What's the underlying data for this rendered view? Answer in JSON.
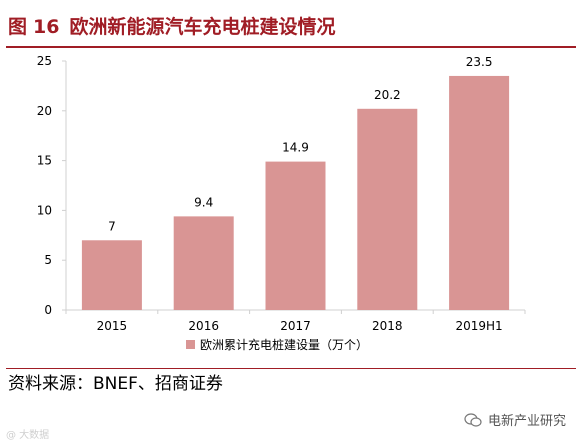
{
  "figure": {
    "label": "图",
    "number": "16",
    "title": "欧洲新能源汽车充电桩建设情况"
  },
  "source": "资料来源：BNEF、招商证券",
  "watermark": {
    "text": "电新产业研究",
    "icon": "wechat-icon"
  },
  "faint_watermark": "@ 大数据",
  "colors": {
    "accent": "#a01d25",
    "bar": "#d99594",
    "axis": "#d0d0d0",
    "text": "#000000"
  },
  "chart_data": {
    "type": "bar",
    "title": "图 16 欧洲新能源汽车充电桩建设情况",
    "categories": [
      "2015",
      "2016",
      "2017",
      "2018",
      "2019H1"
    ],
    "series": [
      {
        "name": "欧洲累计充电桩建设量（万个）",
        "values": [
          7,
          9.4,
          14.9,
          20.2,
          23.5
        ],
        "labels": [
          "7",
          "9.4",
          "14.9",
          "20.2",
          "23.5"
        ]
      }
    ],
    "ylim": [
      0,
      25
    ],
    "yticks": [
      0,
      5,
      10,
      15,
      20,
      25
    ],
    "xlabel": "",
    "ylabel": "",
    "grid": false,
    "legend": "bottom"
  }
}
